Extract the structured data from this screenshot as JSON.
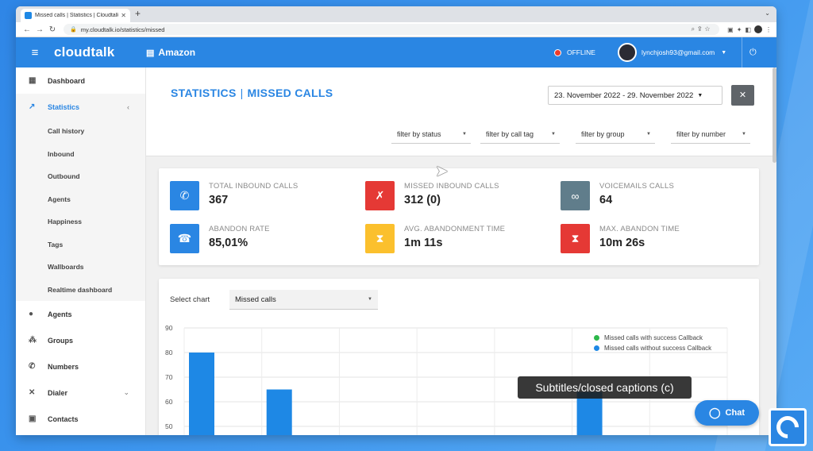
{
  "browser": {
    "tab_title": "Missed calls | Statistics | Cloudtalk",
    "url": "my.cloudtalk.io/statistics/missed"
  },
  "header": {
    "logo": "cloudtalk",
    "company": "Amazon",
    "status": "OFFLINE",
    "user": "lynchjosh93@gmail.com"
  },
  "sidebar": {
    "items": [
      {
        "label": "Dashboard",
        "icon": "dashboard-icon"
      },
      {
        "label": "Statistics",
        "icon": "trending-icon"
      },
      {
        "label": "Call history"
      },
      {
        "label": "Inbound"
      },
      {
        "label": "Outbound"
      },
      {
        "label": "Agents"
      },
      {
        "label": "Happiness"
      },
      {
        "label": "Tags"
      },
      {
        "label": "Wallboards"
      },
      {
        "label": "Realtime dashboard"
      },
      {
        "label": "Agents",
        "icon": "person-icon"
      },
      {
        "label": "Groups",
        "icon": "group-icon"
      },
      {
        "label": "Numbers",
        "icon": "phone-icon"
      },
      {
        "label": "Dialer",
        "icon": "shuffle-icon"
      },
      {
        "label": "Contacts",
        "icon": "contacts-icon"
      }
    ]
  },
  "page": {
    "title_left": "STATISTICS",
    "title_right": "MISSED CALLS",
    "date_range": "23. November 2022 - 29. November 2022",
    "filters": [
      "filter by status",
      "filter by call tag",
      "filter by group",
      "filter by number"
    ]
  },
  "stats": [
    {
      "label": "TOTAL INBOUND CALLS",
      "value": "367",
      "color": "#2a86e3",
      "icon": "phone-icon"
    },
    {
      "label": "MISSED INBOUND CALLS",
      "value": "312 (0)",
      "color": "#e53935",
      "icon": "missed-call-icon"
    },
    {
      "label": "VOICEMAILS CALLS",
      "value": "64",
      "color": "#607d8b",
      "icon": "voicemail-icon"
    },
    {
      "label": "ABANDON RATE",
      "value": "85,01%",
      "color": "#2a86e3",
      "icon": "hangup-icon"
    },
    {
      "label": "AVG. ABANDONMENT TIME",
      "value": "1m 11s",
      "color": "#fbc02d",
      "icon": "hourglass-icon"
    },
    {
      "label": "MAX. ABANDON TIME",
      "value": "10m 26s",
      "color": "#e53935",
      "icon": "hourglass-icon"
    }
  ],
  "chart_panel": {
    "select_label": "Select chart",
    "selected": "Missed calls"
  },
  "chart_data": {
    "type": "bar",
    "ylim": [
      50,
      90
    ],
    "yticks": [
      90,
      80,
      70,
      60,
      50
    ],
    "series": [
      {
        "name": "Missed calls with success Callback",
        "color": "#2db84b",
        "values": []
      },
      {
        "name": "Missed calls without success Callback",
        "color": "#1e88e5",
        "values": [
          80,
          65,
          null,
          null,
          null,
          64,
          null
        ]
      }
    ]
  },
  "overlay": {
    "caption": "Subtitles/closed captions (c)",
    "chat": "Chat"
  }
}
